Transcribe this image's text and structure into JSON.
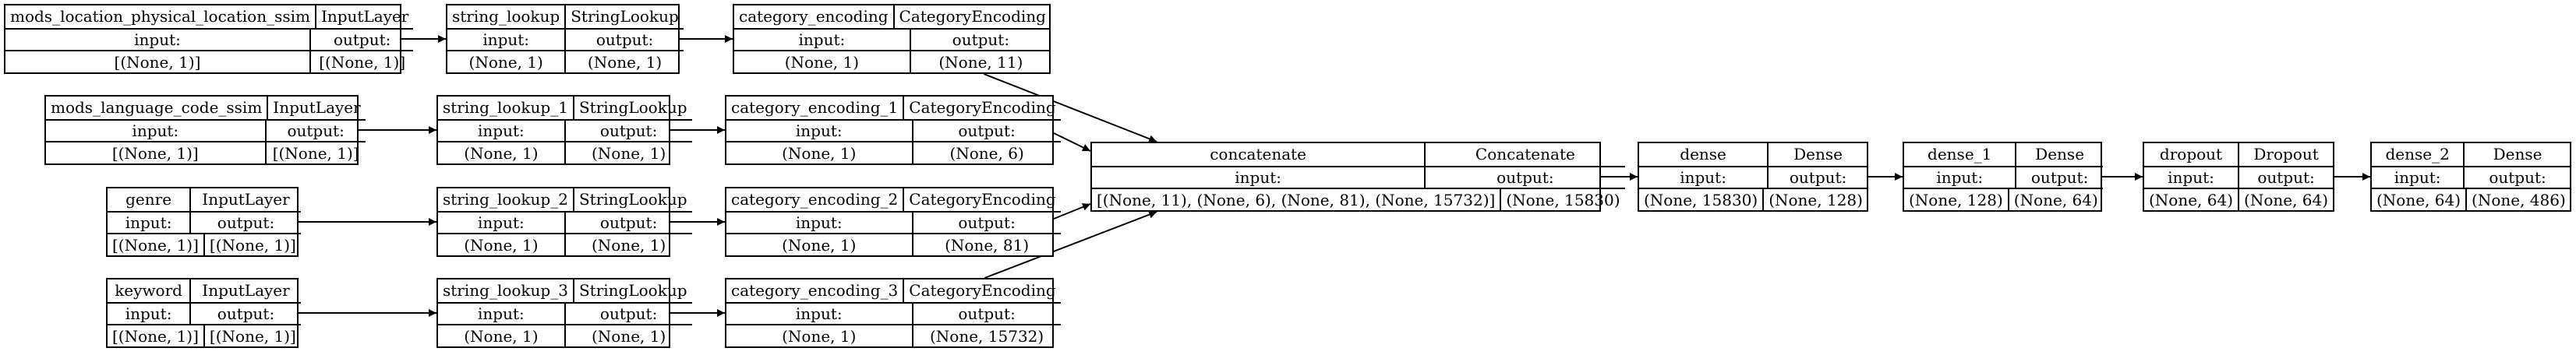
{
  "labels": {
    "input": "input:",
    "output": "output:"
  },
  "nodes": [
    {
      "id": "mods_location_physical_location_ssim",
      "name": "mods_location_physical_location_ssim",
      "type": "InputLayer",
      "input": "[(None, 1)]",
      "output": "[(None, 1)]"
    },
    {
      "id": "string_lookup",
      "name": "string_lookup",
      "type": "StringLookup",
      "input": "(None, 1)",
      "output": "(None, 1)"
    },
    {
      "id": "category_encoding",
      "name": "category_encoding",
      "type": "CategoryEncoding",
      "input": "(None, 1)",
      "output": "(None, 11)"
    },
    {
      "id": "mods_language_code_ssim",
      "name": "mods_language_code_ssim",
      "type": "InputLayer",
      "input": "[(None, 1)]",
      "output": "[(None, 1)]"
    },
    {
      "id": "string_lookup_1",
      "name": "string_lookup_1",
      "type": "StringLookup",
      "input": "(None, 1)",
      "output": "(None, 1)"
    },
    {
      "id": "category_encoding_1",
      "name": "category_encoding_1",
      "type": "CategoryEncoding",
      "input": "(None, 1)",
      "output": "(None, 6)"
    },
    {
      "id": "genre",
      "name": "genre",
      "type": "InputLayer",
      "input": "[(None, 1)]",
      "output": "[(None, 1)]"
    },
    {
      "id": "string_lookup_2",
      "name": "string_lookup_2",
      "type": "StringLookup",
      "input": "(None, 1)",
      "output": "(None, 1)"
    },
    {
      "id": "category_encoding_2",
      "name": "category_encoding_2",
      "type": "CategoryEncoding",
      "input": "(None, 1)",
      "output": "(None, 81)"
    },
    {
      "id": "keyword",
      "name": "keyword",
      "type": "InputLayer",
      "input": "[(None, 1)]",
      "output": "[(None, 1)]"
    },
    {
      "id": "string_lookup_3",
      "name": "string_lookup_3",
      "type": "StringLookup",
      "input": "(None, 1)",
      "output": "(None, 1)"
    },
    {
      "id": "category_encoding_3",
      "name": "category_encoding_3",
      "type": "CategoryEncoding",
      "input": "(None, 1)",
      "output": "(None, 15732)"
    },
    {
      "id": "concatenate",
      "name": "concatenate",
      "type": "Concatenate",
      "input": "[(None, 11), (None, 6), (None, 81), (None, 15732)]",
      "output": "(None, 15830)"
    },
    {
      "id": "dense",
      "name": "dense",
      "type": "Dense",
      "input": "(None, 15830)",
      "output": "(None, 128)"
    },
    {
      "id": "dense_1",
      "name": "dense_1",
      "type": "Dense",
      "input": "(None, 128)",
      "output": "(None, 64)"
    },
    {
      "id": "dropout",
      "name": "dropout",
      "type": "Dropout",
      "input": "(None, 64)",
      "output": "(None, 64)"
    },
    {
      "id": "dense_2",
      "name": "dense_2",
      "type": "Dense",
      "input": "(None, 64)",
      "output": "(None, 486)"
    }
  ],
  "edges": [
    [
      "mods_location_physical_location_ssim",
      "string_lookup"
    ],
    [
      "string_lookup",
      "category_encoding"
    ],
    [
      "mods_language_code_ssim",
      "string_lookup_1"
    ],
    [
      "string_lookup_1",
      "category_encoding_1"
    ],
    [
      "genre",
      "string_lookup_2"
    ],
    [
      "string_lookup_2",
      "category_encoding_2"
    ],
    [
      "keyword",
      "string_lookup_3"
    ],
    [
      "string_lookup_3",
      "category_encoding_3"
    ],
    [
      "category_encoding",
      "concatenate"
    ],
    [
      "category_encoding_1",
      "concatenate"
    ],
    [
      "category_encoding_2",
      "concatenate"
    ],
    [
      "category_encoding_3",
      "concatenate"
    ],
    [
      "concatenate",
      "dense"
    ],
    [
      "dense",
      "dense_1"
    ],
    [
      "dense_1",
      "dropout"
    ],
    [
      "dropout",
      "dense_2"
    ]
  ]
}
